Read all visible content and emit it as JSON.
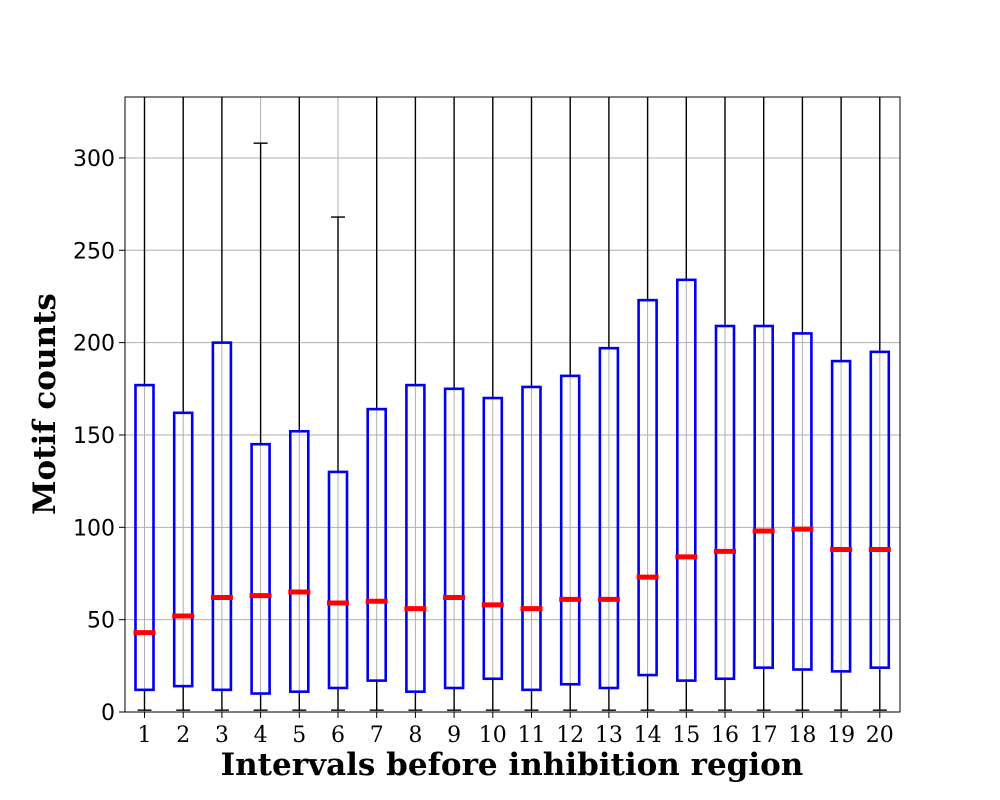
{
  "chart_data": {
    "type": "boxplot",
    "title": "",
    "xlabel": "Intervals before inhibition region",
    "ylabel": "Motif counts",
    "ylim": [
      0,
      333
    ],
    "yticks": [
      0,
      50,
      100,
      150,
      200,
      250,
      300
    ],
    "categories": [
      "1",
      "2",
      "3",
      "4",
      "5",
      "6",
      "7",
      "8",
      "9",
      "10",
      "11",
      "12",
      "13",
      "14",
      "15",
      "16",
      "17",
      "18",
      "19",
      "20"
    ],
    "grid": true,
    "box_color": "#0000ee",
    "median_color": "#ff0000",
    "whisker_color": "#000000",
    "boxes": [
      {
        "whislo": 1,
        "q1": 12,
        "med": 43,
        "q3": 177,
        "whishi": 333
      },
      {
        "whislo": 1,
        "q1": 14,
        "med": 52,
        "q3": 162,
        "whishi": 333
      },
      {
        "whislo": 1,
        "q1": 12,
        "med": 62,
        "q3": 200,
        "whishi": 333
      },
      {
        "whislo": 1,
        "q1": 10,
        "med": 63,
        "q3": 145,
        "whishi": 308
      },
      {
        "whislo": 1,
        "q1": 11,
        "med": 65,
        "q3": 152,
        "whishi": 333
      },
      {
        "whislo": 1,
        "q1": 13,
        "med": 59,
        "q3": 130,
        "whishi": 268
      },
      {
        "whislo": 1,
        "q1": 17,
        "med": 60,
        "q3": 164,
        "whishi": 333
      },
      {
        "whislo": 1,
        "q1": 11,
        "med": 56,
        "q3": 177,
        "whishi": 333
      },
      {
        "whislo": 1,
        "q1": 13,
        "med": 62,
        "q3": 175,
        "whishi": 333
      },
      {
        "whislo": 1,
        "q1": 18,
        "med": 58,
        "q3": 170,
        "whishi": 333
      },
      {
        "whislo": 1,
        "q1": 12,
        "med": 56,
        "q3": 176,
        "whishi": 333
      },
      {
        "whislo": 1,
        "q1": 15,
        "med": 61,
        "q3": 182,
        "whishi": 333
      },
      {
        "whislo": 1,
        "q1": 13,
        "med": 61,
        "q3": 197,
        "whishi": 333
      },
      {
        "whislo": 1,
        "q1": 20,
        "med": 73,
        "q3": 223,
        "whishi": 333
      },
      {
        "whislo": 1,
        "q1": 17,
        "med": 84,
        "q3": 234,
        "whishi": 333
      },
      {
        "whislo": 1,
        "q1": 18,
        "med": 87,
        "q3": 209,
        "whishi": 333
      },
      {
        "whislo": 1,
        "q1": 24,
        "med": 98,
        "q3": 209,
        "whishi": 333
      },
      {
        "whislo": 1,
        "q1": 23,
        "med": 99,
        "q3": 205,
        "whishi": 333
      },
      {
        "whislo": 1,
        "q1": 22,
        "med": 88,
        "q3": 190,
        "whishi": 333
      },
      {
        "whislo": 1,
        "q1": 24,
        "med": 88,
        "q3": 195,
        "whishi": 333
      }
    ]
  }
}
